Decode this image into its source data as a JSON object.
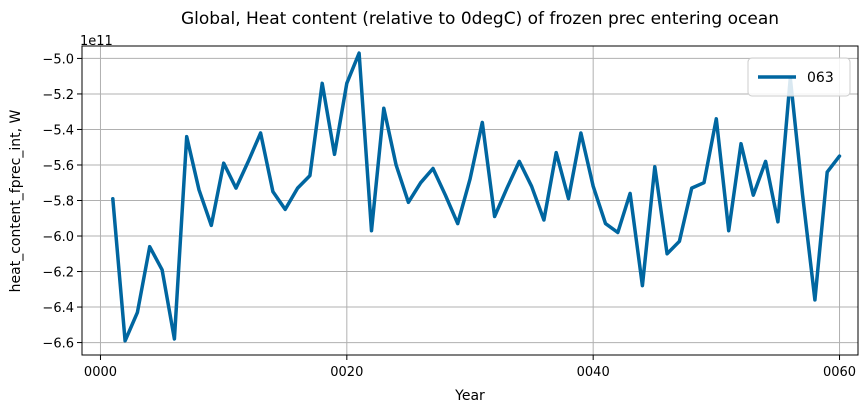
{
  "chart_data": {
    "type": "line",
    "title": "Global, Heat content (relative to 0degC) of frozen prec entering ocean",
    "xlabel": "Year",
    "ylabel": "heat_content_fprec_int, W",
    "y_offset_label": "1e11",
    "xlim": [
      -1.5,
      61.5
    ],
    "ylim": [
      -6.67,
      -4.93
    ],
    "x_ticks": [
      0,
      20,
      40,
      60
    ],
    "x_tick_labels": [
      "0000",
      "0020",
      "0040",
      "0060"
    ],
    "y_ticks": [
      -6.6,
      -6.4,
      -6.2,
      -6.0,
      -5.8,
      -5.6,
      -5.4,
      -5.2,
      -5.0
    ],
    "y_tick_labels": [
      "−6.6",
      "−6.4",
      "−6.2",
      "−6.0",
      "−5.8",
      "−5.6",
      "−5.4",
      "−5.2",
      "−5.0"
    ],
    "grid": true,
    "legend_position": "top-right",
    "series": [
      {
        "name": "063",
        "color": "#0066a0",
        "x": [
          1,
          2,
          3,
          4,
          5,
          6,
          7,
          8,
          9,
          10,
          11,
          12,
          13,
          14,
          15,
          16,
          17,
          18,
          19,
          20,
          21,
          22,
          23,
          24,
          25,
          26,
          27,
          28,
          29,
          30,
          31,
          32,
          33,
          34,
          35,
          36,
          37,
          38,
          39,
          40,
          41,
          42,
          43,
          44,
          45,
          46,
          47,
          48,
          49,
          50,
          51,
          52,
          53,
          54,
          55,
          56,
          57,
          58,
          59,
          60
        ],
        "values": [
          -5.79,
          -6.59,
          -6.43,
          -6.06,
          -6.19,
          -6.58,
          -5.44,
          -5.74,
          -5.94,
          -5.59,
          -5.73,
          -5.58,
          -5.42,
          -5.75,
          -5.85,
          -5.73,
          -5.66,
          -5.14,
          -5.54,
          -5.14,
          -4.97,
          -5.97,
          -5.28,
          -5.6,
          -5.81,
          -5.7,
          -5.62,
          -5.77,
          -5.93,
          -5.68,
          -5.36,
          -5.89,
          -5.73,
          -5.58,
          -5.72,
          -5.91,
          -5.53,
          -5.79,
          -5.42,
          -5.72,
          -5.93,
          -5.98,
          -5.76,
          -6.28,
          -5.61,
          -6.1,
          -6.03,
          -5.73,
          -5.7,
          -5.34,
          -5.97,
          -5.48,
          -5.77,
          -5.58,
          -5.92,
          -5.11,
          -5.77,
          -6.36,
          -5.64,
          -5.55
        ]
      }
    ]
  }
}
